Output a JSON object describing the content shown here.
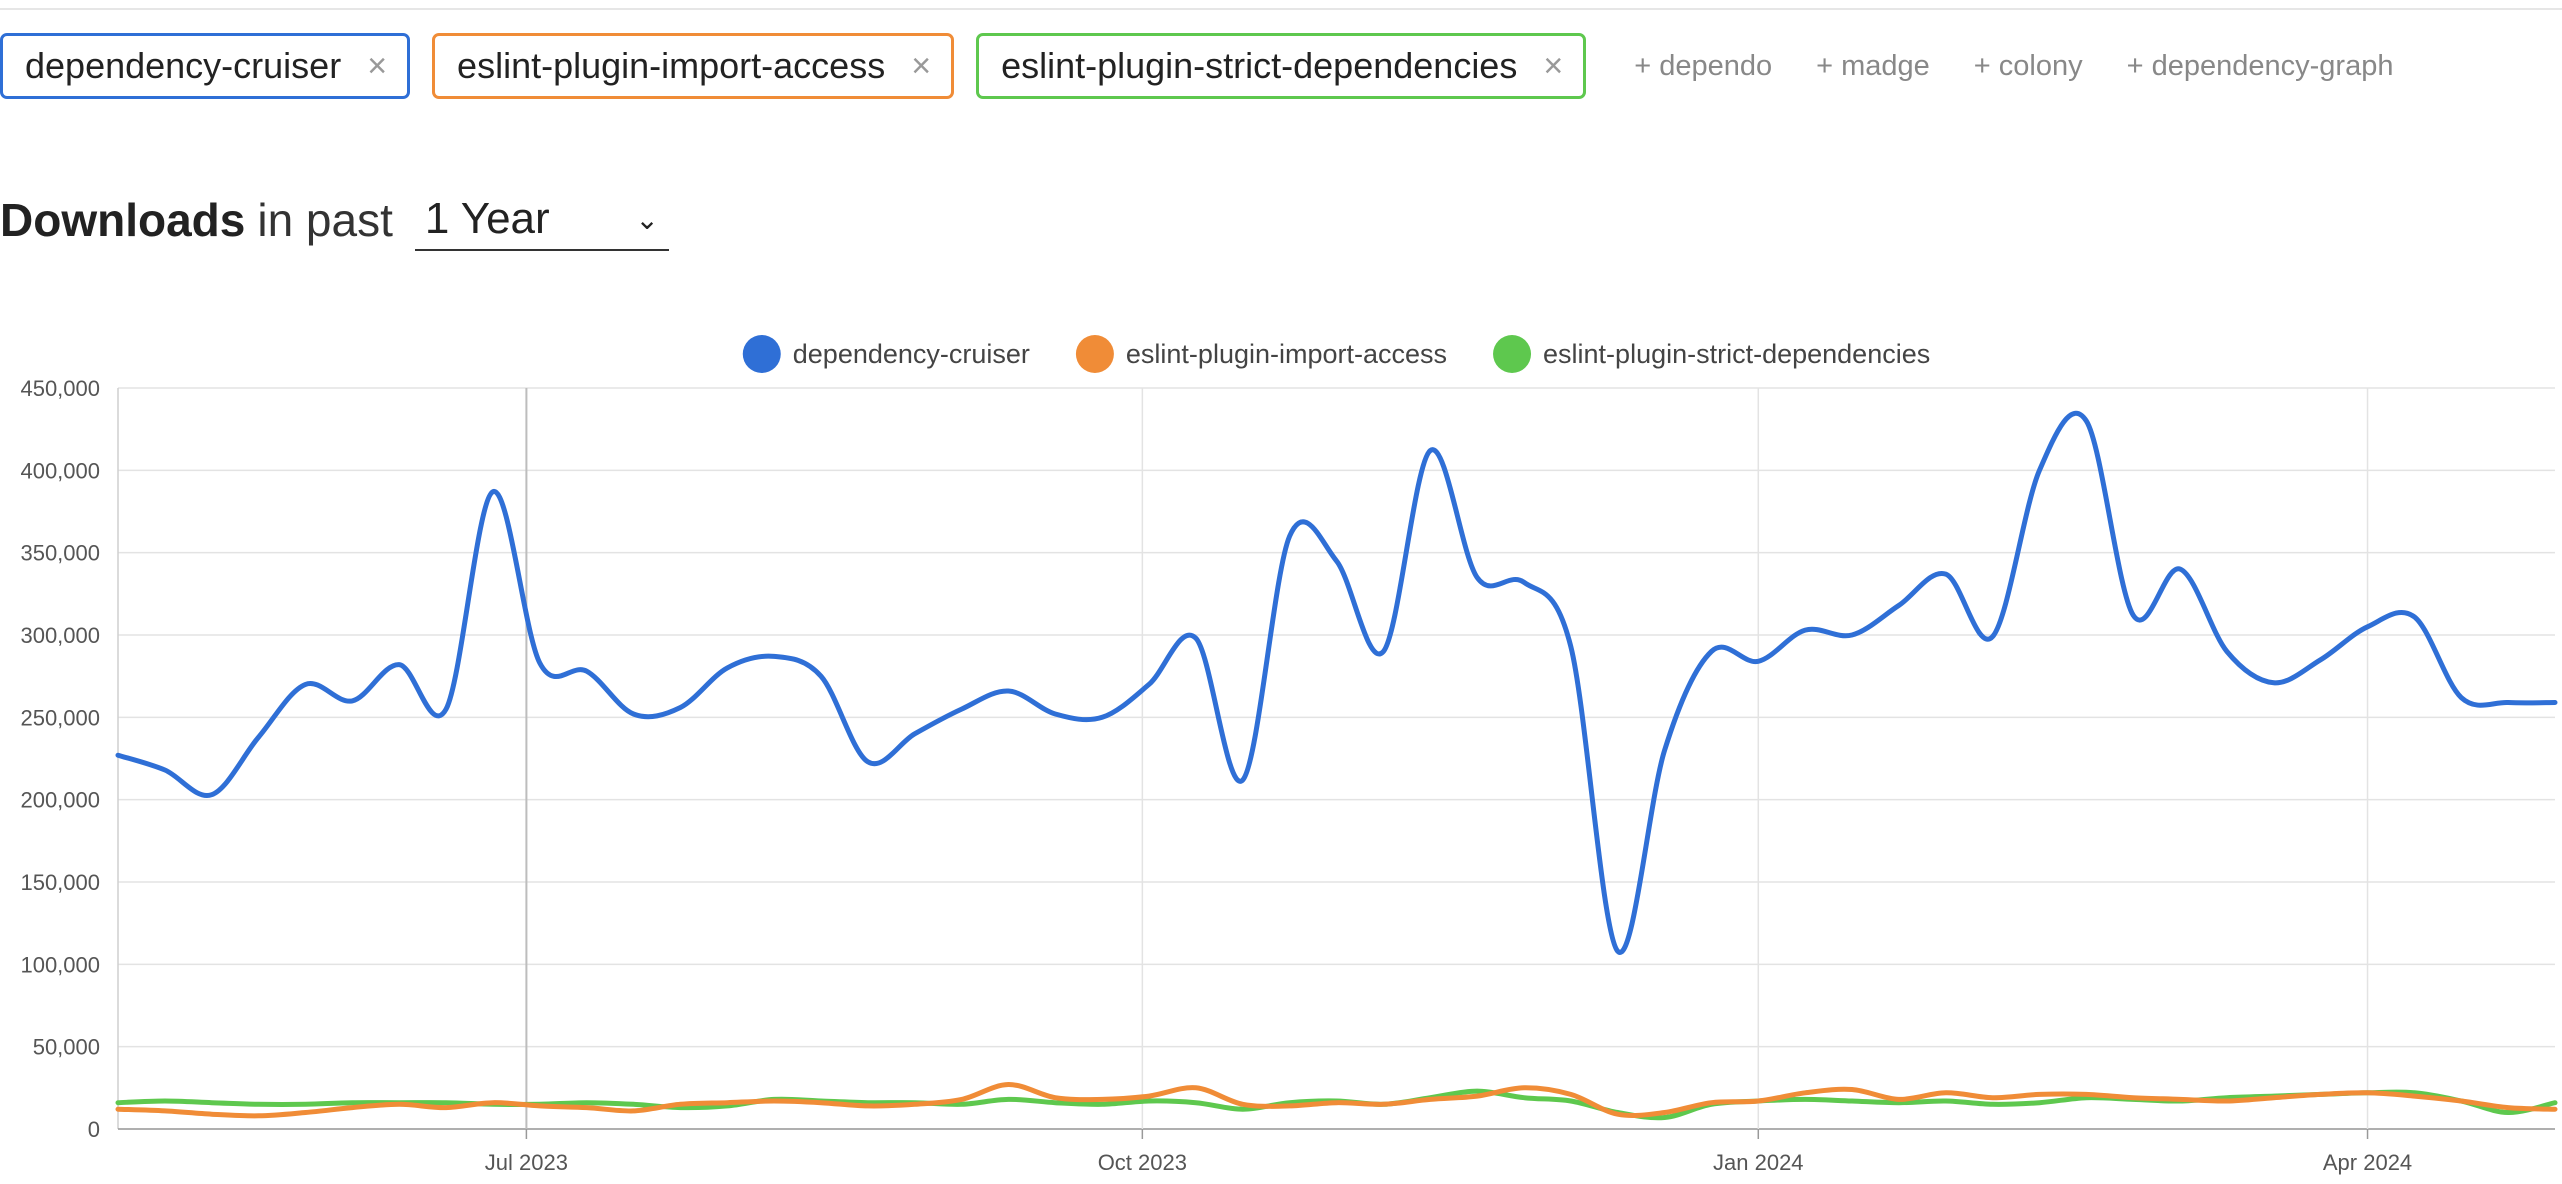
{
  "packages": [
    {
      "name": "dependency-cruiser",
      "color": "#2f6fd6",
      "remove": "×"
    },
    {
      "name": "eslint-plugin-import-access",
      "color": "#f08c37",
      "remove": "×"
    },
    {
      "name": "eslint-plugin-strict-dependencies",
      "color": "#5ec84e",
      "remove": "×"
    }
  ],
  "suggestions": [
    "+ dependo",
    "+ madge",
    "+ colony",
    "+ dependency-graph"
  ],
  "downloads": {
    "title": "Downloads",
    "subtitle": "in past",
    "period": "1 Year",
    "chevron": "⌄"
  },
  "chart_data": {
    "type": "line",
    "legend": "top-center",
    "grid": true,
    "ylim": [
      0,
      450000
    ],
    "yticks": [
      "450,000",
      "400,000",
      "350,000",
      "300,000",
      "250,000",
      "200,000",
      "150,000",
      "100,000",
      "50,000",
      "0"
    ],
    "xticks": [
      {
        "label": "Jul 2023",
        "date": "2023-07-01"
      },
      {
        "label": "Oct 2023",
        "date": "2023-10-01"
      },
      {
        "label": "Jan 2024",
        "date": "2024-01-01"
      },
      {
        "label": "Apr 2024",
        "date": "2024-04-01"
      }
    ],
    "x": [
      "2023-05-01",
      "2023-05-08",
      "2023-05-15",
      "2023-05-22",
      "2023-05-29",
      "2023-06-05",
      "2023-06-12",
      "2023-06-19",
      "2023-06-26",
      "2023-07-03",
      "2023-07-10",
      "2023-07-17",
      "2023-07-24",
      "2023-07-31",
      "2023-08-07",
      "2023-08-14",
      "2023-08-21",
      "2023-08-28",
      "2023-09-04",
      "2023-09-11",
      "2023-09-18",
      "2023-09-25",
      "2023-10-02",
      "2023-10-09",
      "2023-10-16",
      "2023-10-23",
      "2023-10-30",
      "2023-11-06",
      "2023-11-13",
      "2023-11-20",
      "2023-11-27",
      "2023-12-04",
      "2023-12-11",
      "2023-12-18",
      "2023-12-25",
      "2024-01-01",
      "2024-01-08",
      "2024-01-15",
      "2024-01-22",
      "2024-01-29",
      "2024-02-05",
      "2024-02-12",
      "2024-02-19",
      "2024-02-26",
      "2024-03-04",
      "2024-03-11",
      "2024-03-18",
      "2024-03-25",
      "2024-04-01",
      "2024-04-08",
      "2024-04-15",
      "2024-04-22",
      "2024-04-29"
    ],
    "series": [
      {
        "name": "dependency-cruiser",
        "color": "#2f6fd6",
        "values": [
          227000,
          218000,
          203000,
          238000,
          270000,
          260000,
          282000,
          255000,
          387000,
          283000,
          278000,
          252000,
          256000,
          280000,
          287000,
          275000,
          223000,
          240000,
          255000,
          266000,
          252000,
          250000,
          270000,
          298000,
          212000,
          360000,
          345000,
          290000,
          412000,
          335000,
          332000,
          293000,
          108000,
          230000,
          290000,
          284000,
          303000,
          300000,
          318000,
          337000,
          299000,
          400000,
          430000,
          312000,
          340000,
          290000,
          271000,
          285000,
          305000,
          311000,
          262000,
          259000,
          259000
        ]
      },
      {
        "name": "eslint-plugin-import-access",
        "color": "#f08c37",
        "values": [
          12000,
          11000,
          9000,
          8000,
          10000,
          13000,
          15000,
          13000,
          16000,
          14000,
          13000,
          11000,
          15000,
          16000,
          17000,
          16000,
          14000,
          15000,
          18000,
          27000,
          19000,
          18000,
          20000,
          25000,
          15000,
          14000,
          16000,
          15000,
          18000,
          20000,
          25000,
          21000,
          9000,
          10000,
          16000,
          17000,
          22000,
          24000,
          18000,
          22000,
          19000,
          21000,
          21000,
          19000,
          18000,
          17000,
          19000,
          21000,
          22000,
          20000,
          17000,
          13000,
          12000
        ]
      },
      {
        "name": "eslint-plugin-strict-dependencies",
        "color": "#5ec84e",
        "values": [
          16000,
          17000,
          16000,
          15000,
          15000,
          16000,
          16000,
          16000,
          15000,
          15000,
          16000,
          15000,
          13000,
          14000,
          18000,
          17000,
          16000,
          16000,
          15000,
          18000,
          16000,
          15000,
          17000,
          16000,
          12000,
          16000,
          17000,
          15000,
          19000,
          23000,
          19000,
          17000,
          10000,
          7000,
          15000,
          17000,
          18000,
          17000,
          16000,
          17000,
          15000,
          16000,
          19000,
          18000,
          17000,
          19000,
          20000,
          21000,
          22000,
          22000,
          17000,
          10000,
          16000
        ]
      }
    ]
  }
}
